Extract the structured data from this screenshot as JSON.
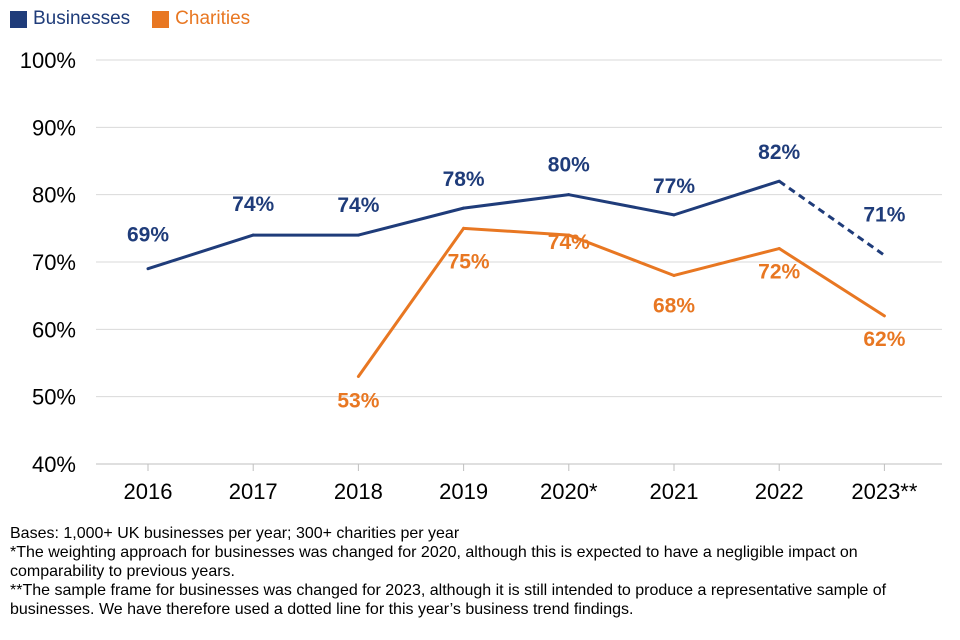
{
  "chart_data": {
    "type": "line",
    "categories": [
      "2016",
      "2017",
      "2018",
      "2019",
      "2020*",
      "2021",
      "2022",
      "2023**"
    ],
    "ylim": [
      40,
      100
    ],
    "yticks": [
      40,
      50,
      60,
      70,
      80,
      90,
      100
    ],
    "ytick_labels": [
      "40%",
      "50%",
      "60%",
      "70%",
      "80%",
      "90%",
      "100%"
    ],
    "grid": true,
    "legend_position": "top-left",
    "series": [
      {
        "name": "Businesses",
        "color": "#1f3c7a",
        "values": [
          69,
          74,
          74,
          78,
          80,
          77,
          82,
          71
        ],
        "labels": [
          "69%",
          "74%",
          "74%",
          "78%",
          "80%",
          "77%",
          "82%",
          "71%"
        ],
        "dashed_from_index": 6
      },
      {
        "name": "Charities",
        "color": "#e87722",
        "values": [
          null,
          null,
          53,
          75,
          74,
          68,
          72,
          62
        ],
        "labels": [
          null,
          null,
          "53%",
          "75%",
          "74%",
          "68%",
          "72%",
          "62%"
        ]
      }
    ]
  },
  "notes": {
    "bases": "Bases: 1,000+ UK businesses per year; 300+ charities per year",
    "note1": "*The weighting approach for businesses was changed for 2020, although this is expected to have a negligible impact on comparability to previous years.",
    "note2": "**The sample frame for businesses was changed for 2023, although it is still intended to produce a representative sample of businesses. We have therefore used a dotted line for this year’s business trend findings."
  }
}
